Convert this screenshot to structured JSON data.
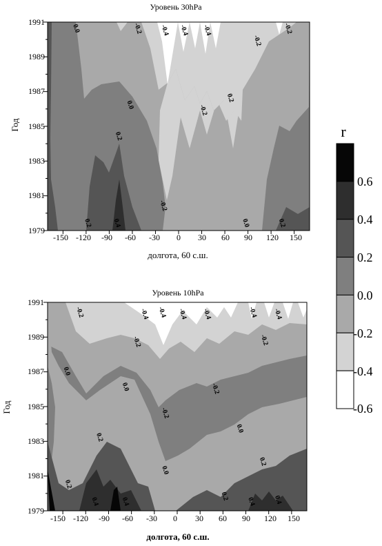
{
  "chart_data": [
    {
      "type": "heatmap",
      "title": "Уровень 30hPa",
      "xlabel": "долгота, 60 с.ш.",
      "ylabel": "Год",
      "x_ticks": [
        "-150",
        "-120",
        "-90",
        "-60",
        "-30",
        "0",
        "30",
        "60",
        "90",
        "120",
        "150"
      ],
      "y_ticks": [
        "1991",
        "1989",
        "1987",
        "1985",
        "1983",
        "1981",
        "1979"
      ],
      "xlim": [
        -170,
        170
      ],
      "ylim": [
        1979,
        1991
      ],
      "contour_labels": [
        {
          "lon": -135,
          "year": 1990.6,
          "text": "0.0"
        },
        {
          "lon": -55,
          "year": 1990.6,
          "text": "-0.2"
        },
        {
          "lon": -20,
          "year": 1990.5,
          "text": "-0.4"
        },
        {
          "lon": 5,
          "year": 1990.5,
          "text": "-0.4"
        },
        {
          "lon": 35,
          "year": 1990.5,
          "text": "-0.4"
        },
        {
          "lon": 100,
          "year": 1989.9,
          "text": "-0.2"
        },
        {
          "lon": 140,
          "year": 1990.6,
          "text": "-0.2"
        },
        {
          "lon": -65,
          "year": 1986.2,
          "text": "0.0"
        },
        {
          "lon": 30,
          "year": 1985.9,
          "text": "-0.2"
        },
        {
          "lon": 65,
          "year": 1986.6,
          "text": "0.2"
        },
        {
          "lon": -80,
          "year": 1984.4,
          "text": "0.2"
        },
        {
          "lon": -120,
          "year": 1979.4,
          "text": "0.2"
        },
        {
          "lon": -82,
          "year": 1979.4,
          "text": "0.4"
        },
        {
          "lon": -22,
          "year": 1980.4,
          "text": "-0.2"
        },
        {
          "lon": 85,
          "year": 1979.4,
          "text": "0.0"
        },
        {
          "lon": 132,
          "year": 1979.4,
          "text": "0.2"
        }
      ]
    },
    {
      "type": "heatmap",
      "title": "Уровень 10hPa",
      "xlabel": "долгота, 60 с.ш.",
      "ylabel": "Год",
      "x_ticks": [
        "-150",
        "-120",
        "-90",
        "-60",
        "-30",
        "0",
        "30",
        "60",
        "90",
        "120",
        "150"
      ],
      "y_ticks": [
        "1991",
        "1989",
        "1987",
        "1985",
        "1983",
        "1981",
        "1979"
      ],
      "xlim": [
        -170,
        170
      ],
      "ylim": [
        1979,
        1991
      ],
      "contour_labels": [
        {
          "lon": -130,
          "year": 1990.4,
          "text": "-0.2"
        },
        {
          "lon": -45,
          "year": 1990.3,
          "text": "-0.4"
        },
        {
          "lon": -22,
          "year": 1990.4,
          "text": "-0.4"
        },
        {
          "lon": 5,
          "year": 1990.3,
          "text": "-0.4"
        },
        {
          "lon": 37,
          "year": 1990.3,
          "text": "-0.4"
        },
        {
          "lon": 97,
          "year": 1990.4,
          "text": "-0.4"
        },
        {
          "lon": 130,
          "year": 1990.3,
          "text": "-0.4"
        },
        {
          "lon": -55,
          "year": 1988.7,
          "text": "-0.2"
        },
        {
          "lon": 112,
          "year": 1988.8,
          "text": "-0.2"
        },
        {
          "lon": -147,
          "year": 1987.0,
          "text": "0.0"
        },
        {
          "lon": -70,
          "year": 1986.1,
          "text": "0.0"
        },
        {
          "lon": 48,
          "year": 1986.0,
          "text": "-0.2"
        },
        {
          "lon": -18,
          "year": 1984.6,
          "text": "-0.2"
        },
        {
          "lon": 80,
          "year": 1983.7,
          "text": "0.0"
        },
        {
          "lon": -104,
          "year": 1983.2,
          "text": "0.2"
        },
        {
          "lon": -145,
          "year": 1980.5,
          "text": "0.2"
        },
        {
          "lon": -18,
          "year": 1981.3,
          "text": "0.0"
        },
        {
          "lon": 110,
          "year": 1981.8,
          "text": "0.2"
        },
        {
          "lon": 60,
          "year": 1979.8,
          "text": "0.2"
        },
        {
          "lon": -110,
          "year": 1979.5,
          "text": "0.4"
        },
        {
          "lon": -70,
          "year": 1979.5,
          "text": "0.4"
        },
        {
          "lon": 95,
          "year": 1979.5,
          "text": "0.4"
        },
        {
          "lon": 130,
          "year": 1979.6,
          "text": "0.4"
        }
      ]
    }
  ],
  "colorbar": {
    "label": "r",
    "ticks": [
      "0.6",
      "0.4",
      "0.2",
      "0.0",
      "-0.2",
      "-0.4",
      "-0.6"
    ],
    "levels": [
      {
        "from": 0.6,
        "to": 0.8,
        "color": "#060606"
      },
      {
        "from": 0.4,
        "to": 0.6,
        "color": "#2e2e2e"
      },
      {
        "from": 0.2,
        "to": 0.4,
        "color": "#555555"
      },
      {
        "from": 0.0,
        "to": 0.2,
        "color": "#7f7f7f"
      },
      {
        "from": -0.2,
        "to": 0.0,
        "color": "#a9a9a9"
      },
      {
        "from": -0.4,
        "to": -0.2,
        "color": "#d3d3d3"
      },
      {
        "from": -0.6,
        "to": -0.4,
        "color": "#ffffff"
      }
    ]
  }
}
